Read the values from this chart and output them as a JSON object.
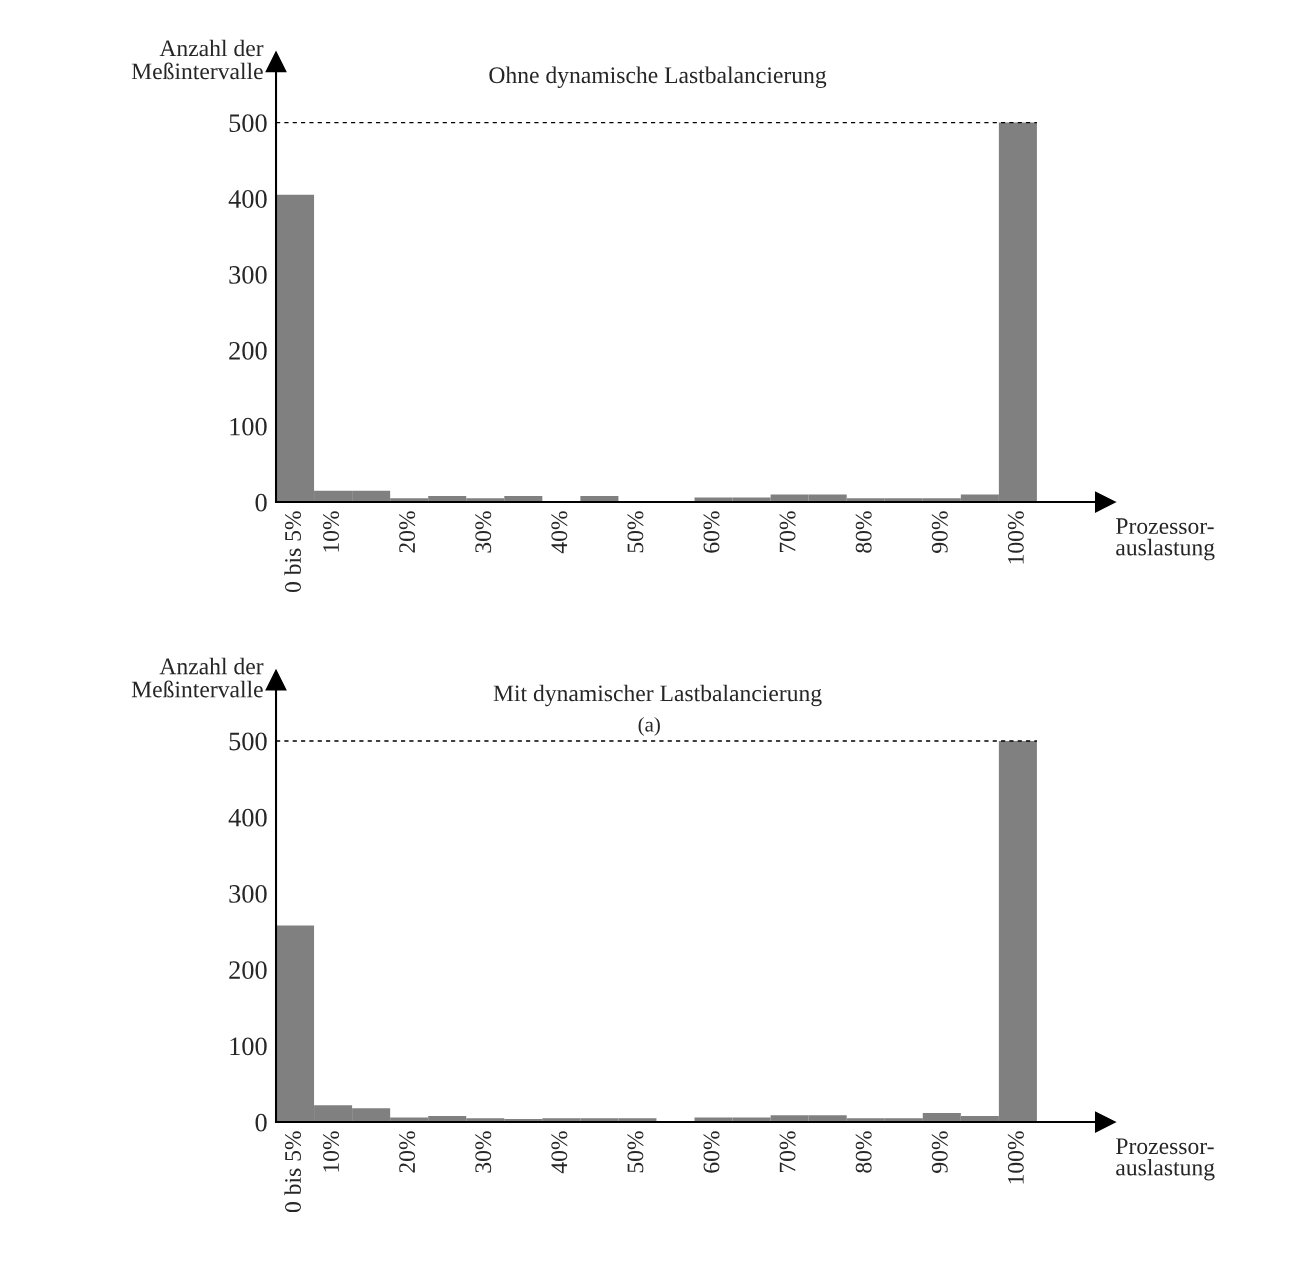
{
  "chart_data": [
    {
      "type": "bar",
      "title": "Ohne dynamische Lastbalancierung",
      "xlabel": "Prozessor-\nauslastung",
      "ylabel": "Anzahl der\nMeßintervalle",
      "categories": [
        "0 bis 5%",
        "10%",
        null,
        "20%",
        null,
        "30%",
        null,
        "40%",
        null,
        "50%",
        null,
        "60%",
        null,
        "70%",
        null,
        "80%",
        null,
        "90%",
        null,
        "100%"
      ],
      "values": [
        405,
        15,
        15,
        5,
        8,
        5,
        8,
        0,
        8,
        0,
        0,
        6,
        6,
        10,
        10,
        5,
        5,
        5,
        10,
        500
      ],
      "color": "#808080",
      "ylim": [
        0,
        580
      ],
      "yticks": [
        0,
        100,
        200,
        300,
        400,
        500
      ],
      "grid": false,
      "ref_lines": [
        {
          "axis": "y",
          "value": 500,
          "color": "#000000",
          "line_style": "dashed"
        }
      ]
    },
    {
      "type": "bar",
      "title": "Mit dynamischer Lastbalancierung",
      "xlabel": "Prozessor-\nauslastung",
      "ylabel": "Anzahl der\nMeßintervalle",
      "categories": [
        "0 bis 5%",
        "10%",
        null,
        "20%",
        null,
        "30%",
        null,
        "40%",
        null,
        "50%",
        null,
        "60%",
        null,
        "70%",
        null,
        "80%",
        null,
        "90%",
        null,
        "100%"
      ],
      "values": [
        258,
        22,
        18,
        6,
        8,
        5,
        4,
        5,
        5,
        5,
        0,
        6,
        6,
        9,
        9,
        5,
        5,
        12,
        8,
        500
      ],
      "color": "#808080",
      "ylim": [
        0,
        580
      ],
      "yticks": [
        0,
        100,
        200,
        300,
        400,
        500
      ],
      "grid": false,
      "ref_lines": [
        {
          "axis": "y",
          "value": 500,
          "color": "#000000",
          "line_style": "dashed"
        }
      ],
      "annotations": [
        "(a)"
      ]
    }
  ]
}
